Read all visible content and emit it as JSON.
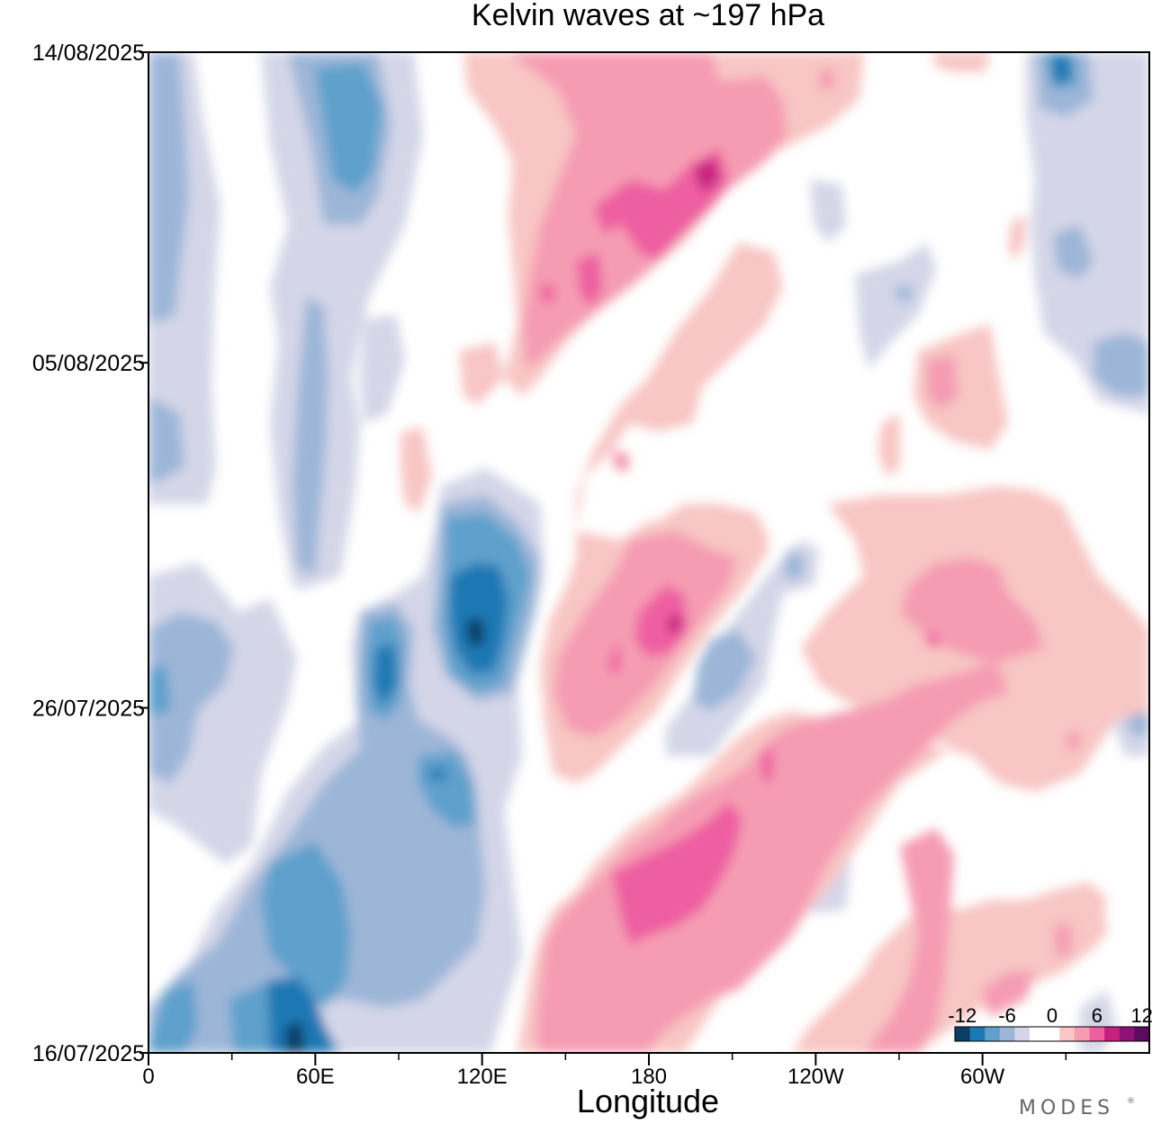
{
  "chart_data": {
    "type": "heatmap",
    "title": "Kelvin waves at ~197 hPa",
    "xlabel": "Longitude",
    "ylabel": "",
    "x_ticks": [
      "0",
      "60E",
      "120E",
      "180",
      "120W",
      "60W"
    ],
    "x_tick_values": [
      0,
      60,
      120,
      180,
      240,
      300
    ],
    "xlim": [
      0,
      360
    ],
    "y_ticks": [
      "14/08/2025",
      "05/08/2025",
      "26/07/2025",
      "16/07/2025"
    ],
    "y_tick_dates": [
      "2025-08-14",
      "2025-08-05",
      "2025-07-26",
      "2025-07-16"
    ],
    "ylim": [
      "2025-07-16",
      "2025-08-14"
    ],
    "colorbar": {
      "tick_labels": [
        "-12",
        "-6",
        "0",
        "6",
        "12"
      ],
      "levels": [
        -12,
        -10,
        -8,
        -6,
        -4,
        -2,
        0,
        2,
        4,
        6,
        8,
        10,
        12
      ],
      "colors": [
        "#0d3d66",
        "#1a78b4",
        "#5fa0cc",
        "#9db6d8",
        "#d4d6e8",
        "#ffffff",
        "#ffffff",
        "#f8c6c4",
        "#f59cb2",
        "#ee5fa1",
        "#c62080",
        "#901078",
        "#5a0c5e"
      ],
      "extend": "both"
    },
    "features": [
      {
        "sign": "positive",
        "peak": 9,
        "lon_start": 150,
        "lon_end": 200,
        "date_start": "2025-08-10",
        "date_end": "2025-08-03"
      },
      {
        "sign": "positive",
        "peak": 9,
        "lon_start": 160,
        "lon_end": 200,
        "date_start": "2025-07-29",
        "date_end": "2025-07-25"
      },
      {
        "sign": "positive",
        "peak": 9,
        "lon_start": 170,
        "lon_end": 230,
        "date_start": "2025-07-20",
        "date_end": "2025-07-24"
      },
      {
        "sign": "positive",
        "peak": 7,
        "lon_start": 230,
        "lon_end": 310,
        "date_start": "2025-07-22",
        "date_end": "2025-07-29"
      },
      {
        "sign": "positive",
        "peak": 5,
        "lon_start": 290,
        "lon_end": 320,
        "date_start": "2025-08-03",
        "date_end": "2025-08-07"
      },
      {
        "sign": "positive",
        "peak": 5,
        "lon_start": 90,
        "lon_end": 100,
        "date_start": "2025-07-31",
        "date_end": "2025-08-02"
      },
      {
        "sign": "negative",
        "peak": -10,
        "lon_start": 100,
        "lon_end": 130,
        "date_start": "2025-07-26",
        "date_end": "2025-08-01"
      },
      {
        "sign": "negative",
        "peak": -9,
        "lon_start": 75,
        "lon_end": 95,
        "date_start": "2025-07-24",
        "date_end": "2025-07-28"
      },
      {
        "sign": "negative",
        "peak": -10,
        "lon_start": 40,
        "lon_end": 70,
        "date_start": "2025-07-16",
        "date_end": "2025-07-22"
      },
      {
        "sign": "negative",
        "peak": -8,
        "lon_start": 60,
        "lon_end": 85,
        "date_start": "2025-08-09",
        "date_end": "2025-08-14"
      },
      {
        "sign": "negative",
        "peak": -6,
        "lon_start": 0,
        "lon_end": 20,
        "date_start": "2025-07-24",
        "date_end": "2025-08-14"
      },
      {
        "sign": "negative",
        "peak": -8,
        "lon_start": 320,
        "lon_end": 360,
        "date_start": "2025-08-04",
        "date_end": "2025-08-14"
      }
    ]
  },
  "watermark": "MODES"
}
